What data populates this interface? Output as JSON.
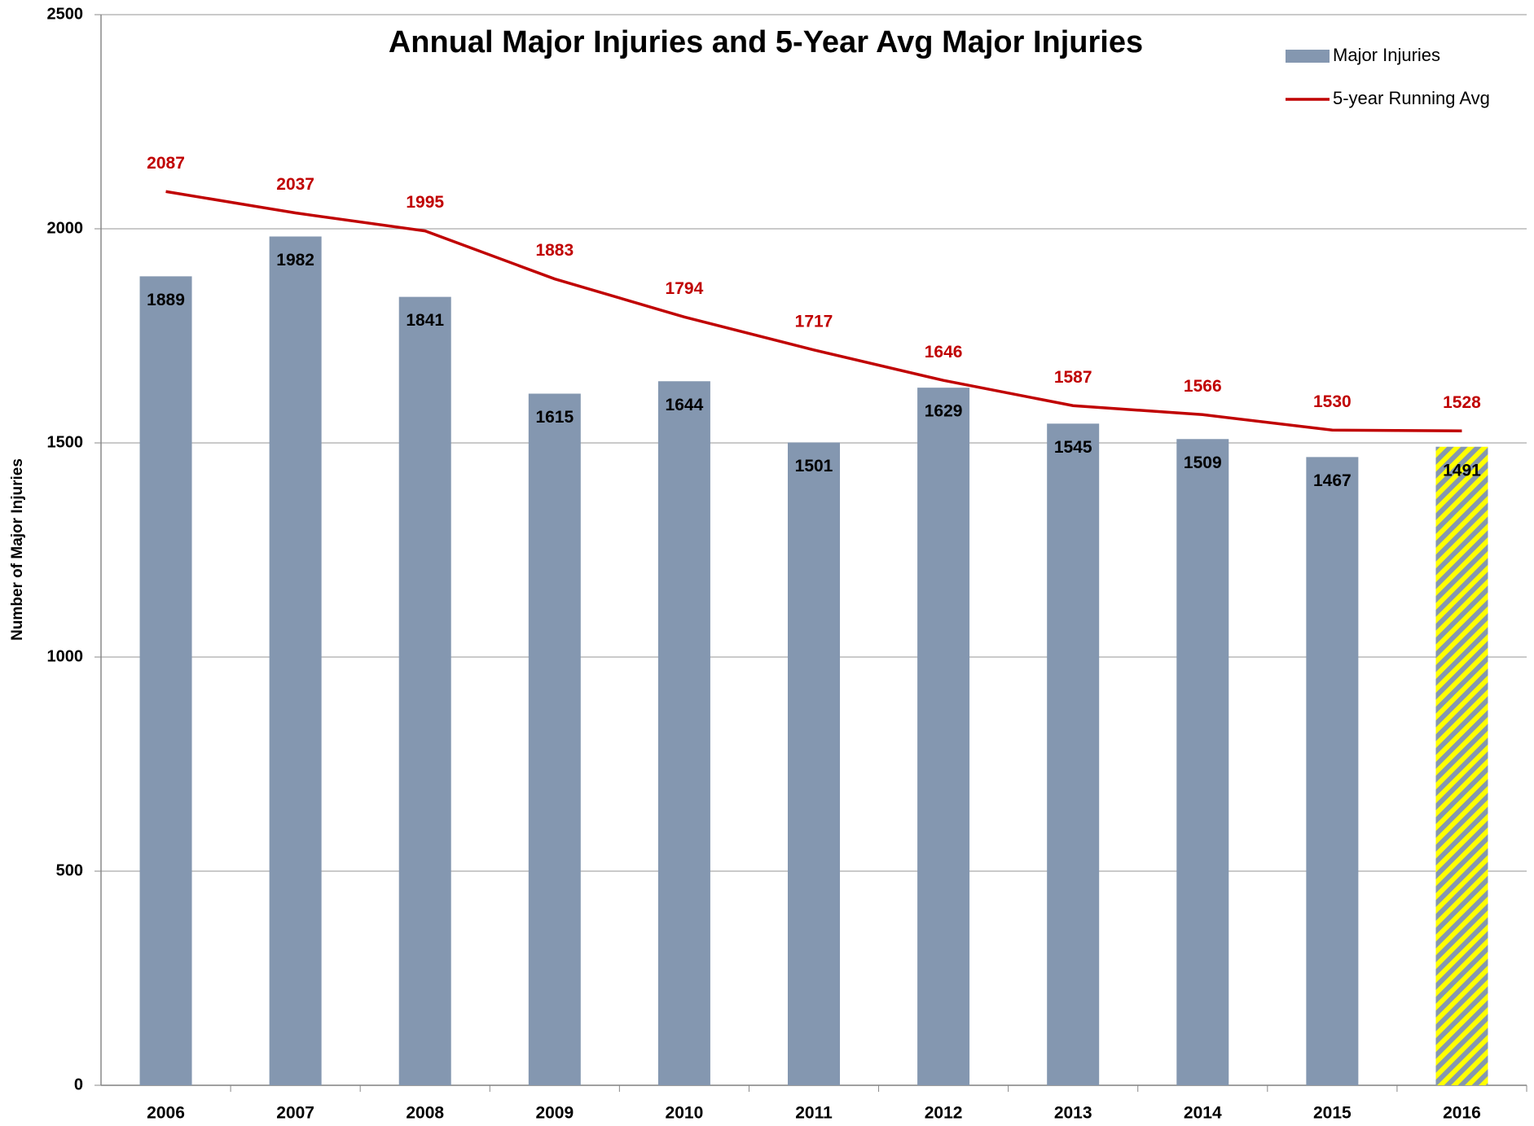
{
  "chart_data": {
    "type": "bar",
    "title": "Annual Major Injuries and 5-Year Avg Major Injuries",
    "y_label": "Number of Major Injuries",
    "categories": [
      "2006",
      "2007",
      "2008",
      "2009",
      "2010",
      "2011",
      "2012",
      "2013",
      "2014",
      "2015",
      "2016"
    ],
    "series": [
      {
        "name": "Major Injuries",
        "color": "#8497b0",
        "values": [
          1889,
          1982,
          1841,
          1615,
          1644,
          1501,
          1629,
          1545,
          1509,
          1467,
          1491
        ],
        "point_colors": [
          "#8497b0",
          "#8497b0",
          "#8497b0",
          "#8497b0",
          "#8497b0",
          "#8497b0",
          "#8497b0",
          "#8497b0",
          "#8497b0",
          "#8497b0",
          "#ffff00"
        ],
        "hatch": [
          false,
          false,
          false,
          false,
          false,
          false,
          false,
          false,
          false,
          false,
          true
        ]
      },
      {
        "name": "5-year Running Avg",
        "type": "line",
        "color": "#c00000",
        "values": [
          2087,
          2037,
          1995,
          1883,
          1794,
          1717,
          1646,
          1587,
          1566,
          1530,
          1528
        ]
      }
    ],
    "ylim": [
      0,
      2500
    ],
    "yticks": [
      0,
      500,
      1000,
      1500,
      2000,
      2500
    ],
    "grid": true,
    "legend": "top-right"
  }
}
